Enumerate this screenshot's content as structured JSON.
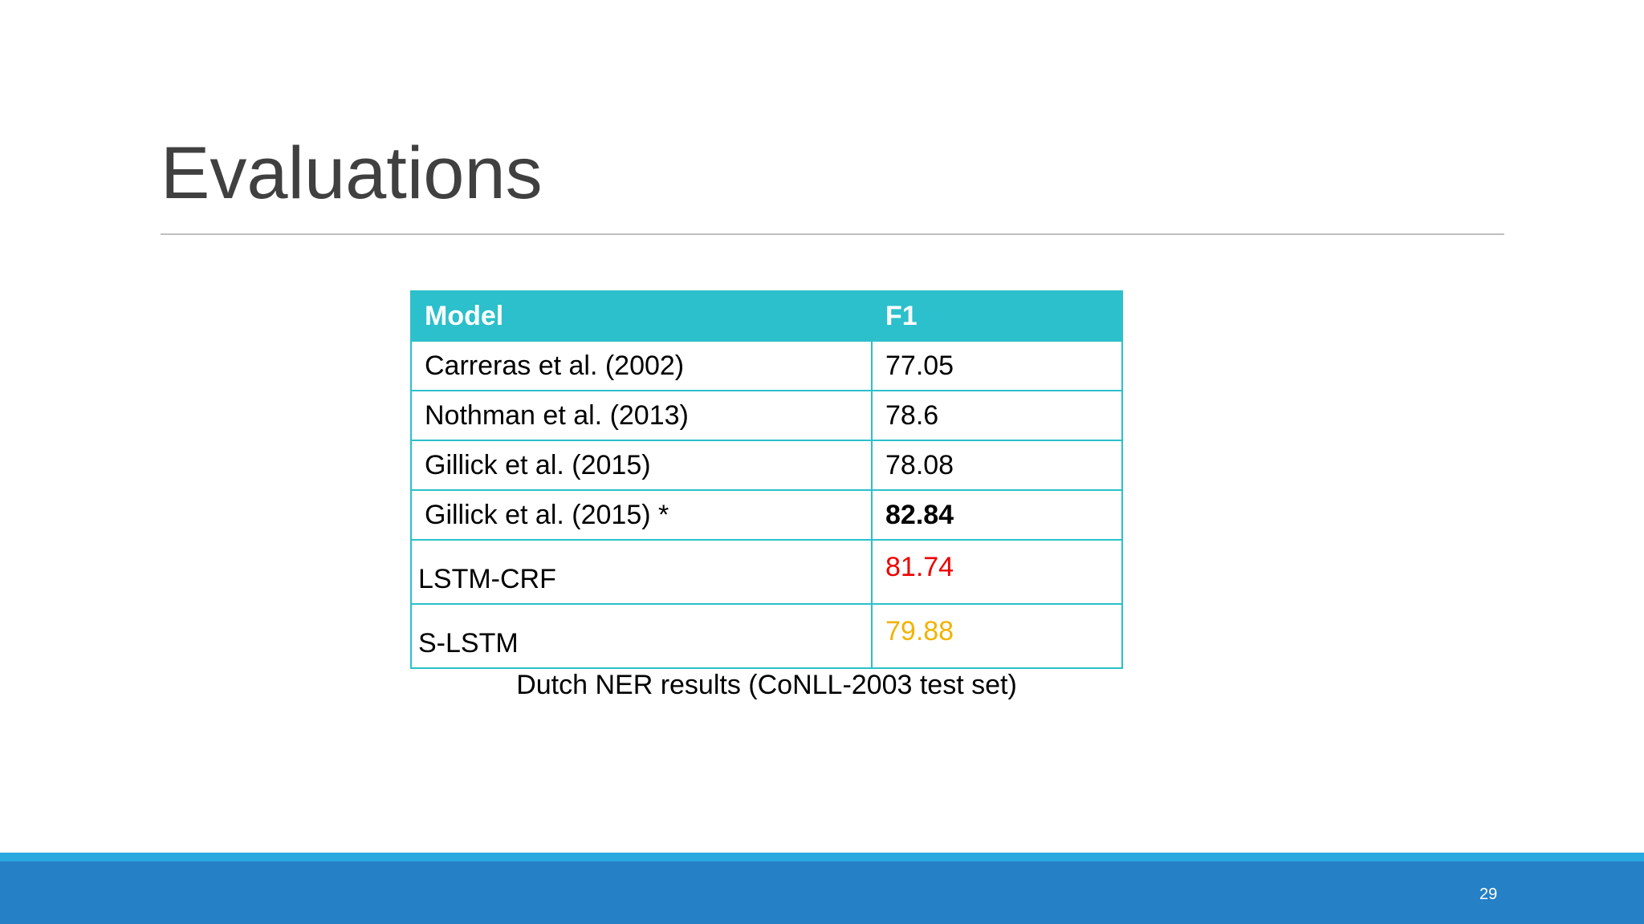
{
  "header": {
    "title": "Evaluations"
  },
  "table": {
    "header": [
      "Model",
      "F1"
    ],
    "rows": [
      [
        "Carreras et al. (2002)",
        "77.05"
      ],
      [
        "Nothman et al. (2013)",
        "78.6"
      ],
      [
        "Gillick et al. (2015)",
        "78.08"
      ],
      [
        "Gillick et al. (2015) *",
        "82.84"
      ],
      [
        "LSTM-CRF",
        "81.74"
      ],
      [
        "S-LSTM",
        "79.88"
      ]
    ]
  },
  "caption": "Dutch NER results (CoNLL-2003 test set)",
  "footer": {
    "page_number": "29"
  }
}
